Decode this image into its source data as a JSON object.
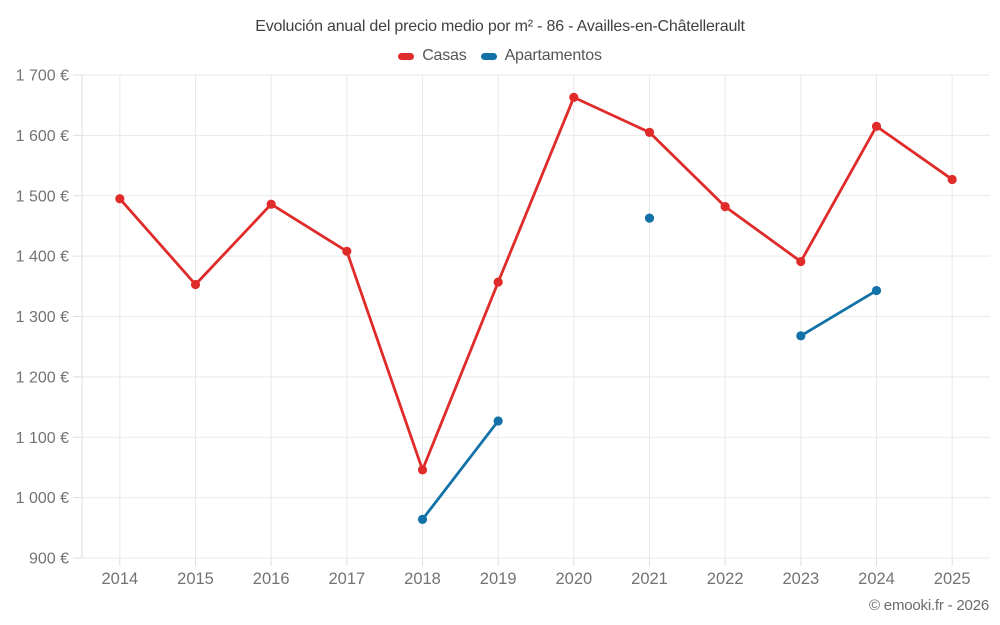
{
  "title": "Evolución anual del precio medio por m² - 86 - Availles-en-Châtellerault",
  "attribution": "© emooki.fr - 2026",
  "legend": [
    {
      "label": "Casas",
      "color": "#e02b2b"
    },
    {
      "label": "Apartamentos",
      "color": "#1271a7"
    }
  ],
  "colors": {
    "background": "#ffffff",
    "grid": "#e9e9e9",
    "axis_border": "#dddddd",
    "tick_label": "#737373",
    "title_text": "#414141",
    "legend_text": "#565656",
    "attribution_text": "#6b6b6b",
    "casas": "#e02b2b",
    "apartamentos": "#1271a7"
  },
  "chart_data": {
    "type": "line",
    "title": "Evolución anual del precio medio por m² - 86 - Availles-en-Châtellerault",
    "categories": [
      "2014",
      "2015",
      "2016",
      "2017",
      "2018",
      "2019",
      "2020",
      "2021",
      "2022",
      "2023",
      "2024",
      "2025"
    ],
    "series": [
      {
        "name": "Casas",
        "color": "#e02b2b",
        "values": [
          1495,
          1353,
          1486,
          1408,
          1046,
          1357,
          1663,
          1605,
          1482,
          1391,
          1615,
          1527
        ]
      },
      {
        "name": "Apartamentos",
        "color": "#1271a7",
        "values": [
          null,
          null,
          null,
          null,
          964,
          1127,
          null,
          1463,
          null,
          1268,
          1343,
          null
        ]
      }
    ],
    "xlabel": "",
    "ylabel": "",
    "ylim": [
      900,
      1700
    ],
    "ytick_step": 100,
    "ytick_suffix": " €",
    "grid": true,
    "legend_position": "top"
  }
}
